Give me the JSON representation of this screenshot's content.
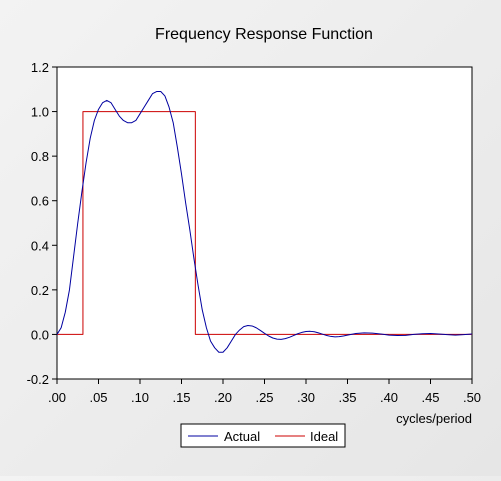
{
  "chart_data": {
    "type": "line",
    "title": "Frequency Response Function",
    "xlabel": "cycles/period",
    "ylabel": "",
    "xlim": [
      0.0,
      0.5
    ],
    "ylim": [
      -0.2,
      1.2
    ],
    "x_ticks": [
      0.0,
      0.05,
      0.1,
      0.15,
      0.2,
      0.25,
      0.3,
      0.35,
      0.4,
      0.45,
      0.5
    ],
    "x_tick_labels": [
      ".00",
      ".05",
      ".10",
      ".15",
      ".20",
      ".25",
      ".30",
      ".35",
      ".40",
      ".45",
      ".50"
    ],
    "y_ticks": [
      -0.2,
      0.0,
      0.2,
      0.4,
      0.6,
      0.8,
      1.0,
      1.2
    ],
    "y_tick_labels": [
      "-0.2",
      "0.0",
      "0.2",
      "0.4",
      "0.6",
      "0.8",
      "1.0",
      "1.2"
    ],
    "grid": false,
    "legend_position": "bottom-center",
    "series": [
      {
        "name": "Actual",
        "color": "#0000a0",
        "x": [
          0.0,
          0.005,
          0.01,
          0.015,
          0.02,
          0.025,
          0.03,
          0.035,
          0.04,
          0.045,
          0.05,
          0.055,
          0.06,
          0.065,
          0.07,
          0.075,
          0.08,
          0.085,
          0.09,
          0.095,
          0.1,
          0.105,
          0.11,
          0.115,
          0.12,
          0.125,
          0.13,
          0.135,
          0.14,
          0.145,
          0.15,
          0.155,
          0.16,
          0.165,
          0.17,
          0.175,
          0.18,
          0.185,
          0.19,
          0.195,
          0.2,
          0.205,
          0.21,
          0.215,
          0.22,
          0.225,
          0.23,
          0.235,
          0.24,
          0.245,
          0.25,
          0.255,
          0.26,
          0.265,
          0.27,
          0.275,
          0.28,
          0.285,
          0.29,
          0.295,
          0.3,
          0.305,
          0.31,
          0.315,
          0.32,
          0.325,
          0.33,
          0.335,
          0.34,
          0.345,
          0.35,
          0.36,
          0.37,
          0.38,
          0.39,
          0.4,
          0.41,
          0.42,
          0.43,
          0.44,
          0.45,
          0.46,
          0.47,
          0.48,
          0.49,
          0.5
        ],
        "y": [
          0.0,
          0.03,
          0.1,
          0.2,
          0.35,
          0.5,
          0.64,
          0.77,
          0.88,
          0.96,
          1.01,
          1.04,
          1.05,
          1.04,
          1.01,
          0.98,
          0.96,
          0.95,
          0.95,
          0.96,
          0.99,
          1.02,
          1.05,
          1.08,
          1.09,
          1.09,
          1.07,
          1.02,
          0.95,
          0.84,
          0.72,
          0.59,
          0.47,
          0.34,
          0.22,
          0.11,
          0.03,
          -0.03,
          -0.06,
          -0.08,
          -0.08,
          -0.06,
          -0.03,
          0.0,
          0.02,
          0.035,
          0.04,
          0.038,
          0.03,
          0.018,
          0.005,
          -0.007,
          -0.016,
          -0.021,
          -0.022,
          -0.019,
          -0.013,
          -0.005,
          0.003,
          0.009,
          0.013,
          0.014,
          0.012,
          0.007,
          0.001,
          -0.005,
          -0.009,
          -0.011,
          -0.01,
          -0.007,
          -0.003,
          0.004,
          0.007,
          0.006,
          0.002,
          -0.003,
          -0.005,
          -0.004,
          0.0,
          0.003,
          0.004,
          0.002,
          -0.001,
          -0.003,
          -0.001,
          0.002
        ]
      },
      {
        "name": "Ideal",
        "color": "#cc0000",
        "x": [
          0.0,
          0.03125,
          0.03125,
          0.16667,
          0.16667,
          0.5
        ],
        "y": [
          0.0,
          0.0,
          1.0,
          1.0,
          0.0,
          0.0
        ]
      }
    ]
  }
}
